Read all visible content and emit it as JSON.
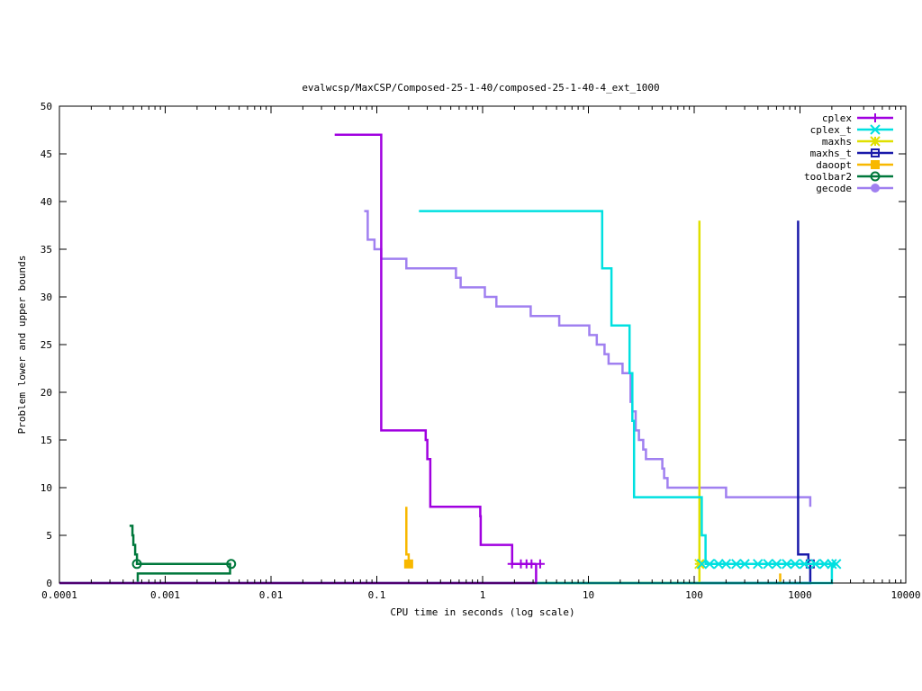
{
  "chart_data": {
    "type": "line",
    "title": "evalwcsp/MaxCSP/Composed-25-1-40/composed-25-1-40-4_ext_1000",
    "xlabel": "CPU time in seconds (log scale)",
    "ylabel": "Problem lower and upper bounds",
    "xscale": "log",
    "xlim": [
      0.0001,
      10000
    ],
    "ylim": [
      0,
      50
    ],
    "xticks": [
      {
        "v": 0.0001,
        "label": "0.0001"
      },
      {
        "v": 0.001,
        "label": "0.001"
      },
      {
        "v": 0.01,
        "label": "0.01"
      },
      {
        "v": 0.1,
        "label": "0.1"
      },
      {
        "v": 1,
        "label": "1"
      },
      {
        "v": 10,
        "label": "10"
      },
      {
        "v": 100,
        "label": "100"
      },
      {
        "v": 1000,
        "label": "1000"
      },
      {
        "v": 10000,
        "label": "10000"
      }
    ],
    "yticks": [
      {
        "v": 0,
        "label": "0"
      },
      {
        "v": 5,
        "label": "5"
      },
      {
        "v": 10,
        "label": "10"
      },
      {
        "v": 15,
        "label": "15"
      },
      {
        "v": 20,
        "label": "20"
      },
      {
        "v": 25,
        "label": "25"
      },
      {
        "v": 30,
        "label": "30"
      },
      {
        "v": 35,
        "label": "35"
      },
      {
        "v": 40,
        "label": "40"
      },
      {
        "v": 45,
        "label": "45"
      },
      {
        "v": 50,
        "label": "50"
      }
    ],
    "legend_position": "top-right",
    "grid": false,
    "series": [
      {
        "name": "cplex",
        "color": "#a000e0",
        "marker": "plus",
        "upper": [
          [
            0.04,
            47
          ],
          [
            0.11,
            47
          ],
          [
            0.11,
            16
          ],
          [
            0.28,
            16
          ],
          [
            0.29,
            15
          ],
          [
            0.3,
            13
          ],
          [
            0.32,
            8
          ],
          [
            0.9,
            8
          ],
          [
            0.95,
            7
          ],
          [
            0.96,
            4
          ],
          [
            1.9,
            4
          ],
          [
            1.9,
            2
          ],
          [
            3.2,
            2
          ]
        ],
        "lower": [
          [
            0.0001,
            0
          ],
          [
            3.2,
            0
          ],
          [
            3.2,
            2
          ]
        ],
        "markers": [
          [
            1.9,
            2
          ],
          [
            2.3,
            2
          ],
          [
            2.6,
            2
          ],
          [
            2.9,
            2
          ],
          [
            3.5,
            2
          ]
        ]
      },
      {
        "name": "cplex_t",
        "color": "#00e0e0",
        "marker": "cross",
        "upper": [
          [
            0.25,
            39
          ],
          [
            13,
            39
          ],
          [
            13.5,
            33
          ],
          [
            16,
            33
          ],
          [
            16.5,
            27
          ],
          [
            24,
            27
          ],
          [
            24.5,
            22
          ],
          [
            26,
            17
          ],
          [
            27,
            9
          ],
          [
            115,
            9
          ],
          [
            118,
            5
          ],
          [
            125,
            5
          ],
          [
            128,
            2
          ],
          [
            2200,
            2
          ]
        ],
        "lower": [
          [
            0.0001,
            0
          ],
          [
            700,
            0
          ],
          [
            1900,
            0
          ],
          [
            2000,
            2
          ]
        ],
        "markers": [
          [
            118,
            2
          ],
          [
            140,
            2
          ],
          [
            170,
            2
          ],
          [
            200,
            2
          ],
          [
            250,
            2
          ],
          [
            300,
            2
          ],
          [
            400,
            2
          ],
          [
            500,
            2
          ],
          [
            600,
            2
          ],
          [
            750,
            2
          ],
          [
            900,
            2
          ],
          [
            1100,
            2
          ],
          [
            1400,
            2
          ],
          [
            1700,
            2
          ],
          [
            2000,
            2
          ],
          [
            2200,
            2
          ]
        ]
      },
      {
        "name": "maxhs",
        "color": "#e0e000",
        "marker": "star",
        "upper": [
          [
            112,
            38
          ],
          [
            112,
            2
          ]
        ],
        "lower": [
          [
            0.0001,
            0
          ],
          [
            112,
            0
          ],
          [
            112,
            2
          ]
        ],
        "markers": [
          [
            112,
            2
          ]
        ]
      },
      {
        "name": "maxhs_t",
        "color": "#1a1aaa",
        "marker": "box",
        "upper": [
          [
            960,
            38
          ],
          [
            960,
            3
          ],
          [
            1200,
            3
          ],
          [
            1200,
            2
          ]
        ],
        "lower": [
          [
            0.0001,
            0
          ],
          [
            960,
            0
          ],
          [
            1250,
            2
          ]
        ],
        "markers": [
          [
            1250,
            2
          ]
        ]
      },
      {
        "name": "daoopt",
        "color": "#f8b800",
        "marker": "fbox",
        "upper": [
          [
            0.19,
            8
          ],
          [
            0.19,
            3
          ],
          [
            0.2,
            2
          ]
        ],
        "lower": [
          [
            0.0001,
            0
          ],
          [
            650,
            0
          ],
          [
            650,
            1
          ]
        ],
        "markers": [
          [
            0.2,
            2
          ]
        ]
      },
      {
        "name": "toolbar2",
        "color": "#00783c",
        "marker": "circle",
        "upper": [
          [
            0.00046,
            6
          ],
          [
            0.00048,
            6
          ],
          [
            0.00049,
            5
          ],
          [
            0.0005,
            4
          ],
          [
            0.00052,
            3
          ],
          [
            0.00054,
            2
          ],
          [
            0.0042,
            2
          ]
        ],
        "lower": [
          [
            0.00045,
            0
          ],
          [
            0.00055,
            0
          ],
          [
            0.00055,
            1
          ],
          [
            0.0041,
            1
          ],
          [
            0.0041,
            2
          ]
        ],
        "markers": [
          [
            0.00054,
            2
          ],
          [
            0.0042,
            2
          ]
        ]
      },
      {
        "name": "gecode",
        "color": "#a080f0",
        "marker": "fcircle",
        "upper": [
          [
            0.076,
            39
          ],
          [
            0.08,
            39
          ],
          [
            0.082,
            36
          ],
          [
            0.09,
            36
          ],
          [
            0.095,
            35
          ],
          [
            0.11,
            35
          ],
          [
            0.11,
            34
          ],
          [
            0.18,
            34
          ],
          [
            0.19,
            33
          ],
          [
            0.55,
            33
          ],
          [
            0.56,
            32
          ],
          [
            0.6,
            32
          ],
          [
            0.62,
            31
          ],
          [
            0.96,
            31
          ],
          [
            1.05,
            30
          ],
          [
            1.3,
            30
          ],
          [
            1.35,
            29
          ],
          [
            2.8,
            29
          ],
          [
            2.85,
            28
          ],
          [
            5.2,
            28
          ],
          [
            5.3,
            27
          ],
          [
            10,
            27
          ],
          [
            10.2,
            26
          ],
          [
            11.5,
            26
          ],
          [
            12,
            25
          ],
          [
            14,
            25
          ],
          [
            14.2,
            24
          ],
          [
            15,
            24
          ],
          [
            15.5,
            23
          ],
          [
            20,
            23
          ],
          [
            21,
            22
          ],
          [
            24.5,
            22
          ],
          [
            25,
            19
          ],
          [
            26,
            18
          ],
          [
            28,
            16
          ],
          [
            30,
            15
          ],
          [
            33,
            14
          ],
          [
            35,
            13
          ],
          [
            48,
            13
          ],
          [
            50,
            12
          ],
          [
            52,
            11
          ],
          [
            56,
            10
          ],
          [
            190,
            10
          ],
          [
            200,
            9
          ],
          [
            1250,
            9
          ],
          [
            1250,
            8
          ]
        ],
        "lower": [],
        "markers": []
      }
    ]
  }
}
